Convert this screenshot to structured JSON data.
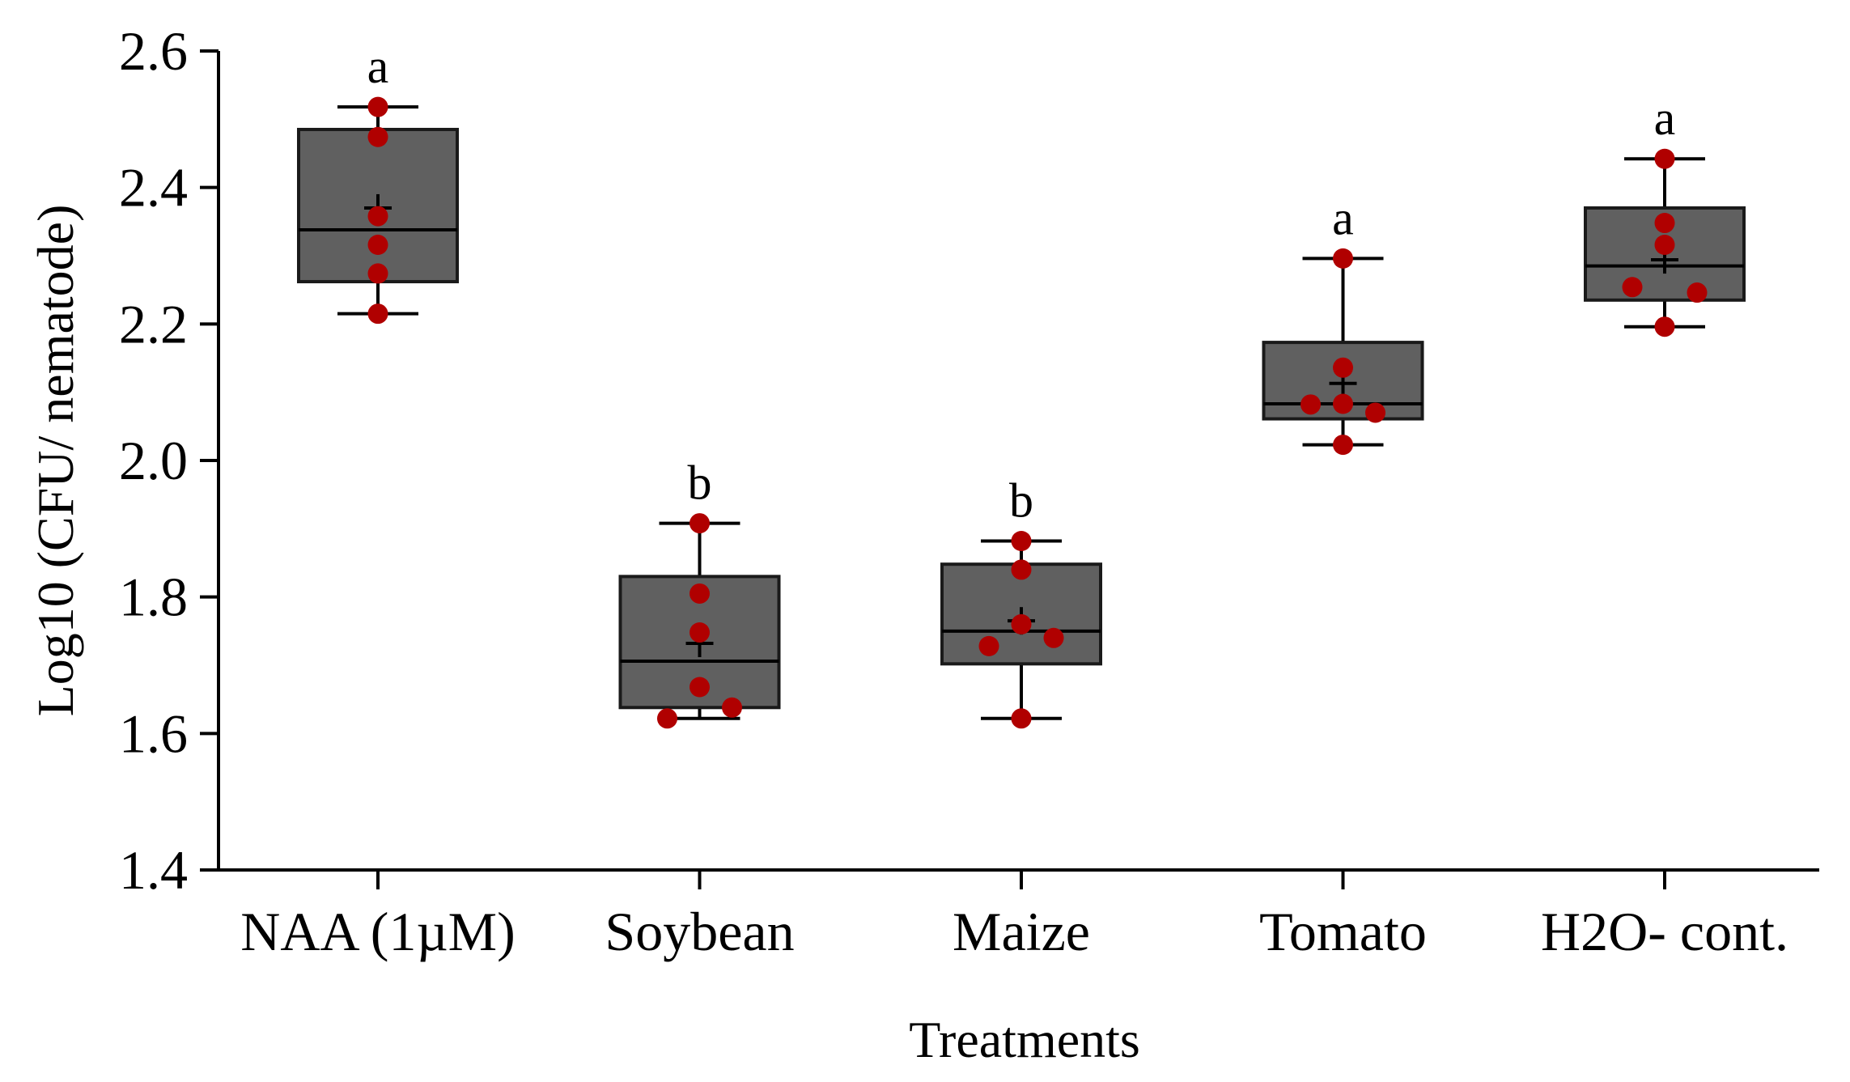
{
  "chart_data": {
    "type": "box",
    "title": "",
    "xlabel": "Treatments",
    "ylabel": "Log10 (CFU/ nematode)",
    "ylim": [
      1.4,
      2.6
    ],
    "yticks": [
      1.4,
      1.6,
      1.8,
      2.0,
      2.2,
      2.4,
      2.6
    ],
    "ytick_labels": [
      "1.4",
      "1.6",
      "1.8",
      "2.0",
      "2.2",
      "2.4",
      "2.6"
    ],
    "grid": false,
    "colors": {
      "box_fill": "#606060",
      "box_edge": "#1a1a1a",
      "point": "#b00000"
    },
    "categories": [
      "NAA (1µM)",
      "Soybean",
      "Maize",
      "Tomato",
      "H2O- cont."
    ],
    "groups": [
      {
        "category": "NAA (1µM)",
        "min": 2.215,
        "q1": 2.262,
        "median": 2.338,
        "q3": 2.485,
        "max": 2.518,
        "mean": 2.37,
        "letter": "a",
        "points": [
          2.518,
          2.474,
          2.358,
          2.316,
          2.274,
          2.215
        ]
      },
      {
        "category": "Soybean",
        "min": 1.622,
        "q1": 1.638,
        "median": 1.706,
        "q3": 1.83,
        "max": 1.908,
        "mean": 1.732,
        "letter": "b",
        "points": [
          1.908,
          1.805,
          1.748,
          1.668,
          1.638,
          1.622
        ]
      },
      {
        "category": "Maize",
        "min": 1.622,
        "q1": 1.702,
        "median": 1.75,
        "q3": 1.848,
        "max": 1.882,
        "mean": 1.765,
        "letter": "b",
        "points": [
          1.882,
          1.84,
          1.76,
          1.74,
          1.728,
          1.622
        ]
      },
      {
        "category": "Tomato",
        "min": 2.023,
        "q1": 2.061,
        "median": 2.083,
        "q3": 2.173,
        "max": 2.296,
        "mean": 2.113,
        "letter": "a",
        "points": [
          2.296,
          2.136,
          2.083,
          2.082,
          2.07,
          2.023
        ]
      },
      {
        "category": "H2O- cont.",
        "min": 2.196,
        "q1": 2.235,
        "median": 2.285,
        "q3": 2.37,
        "max": 2.442,
        "mean": 2.294,
        "letter": "a",
        "points": [
          2.442,
          2.348,
          2.316,
          2.254,
          2.246,
          2.196
        ]
      }
    ]
  }
}
